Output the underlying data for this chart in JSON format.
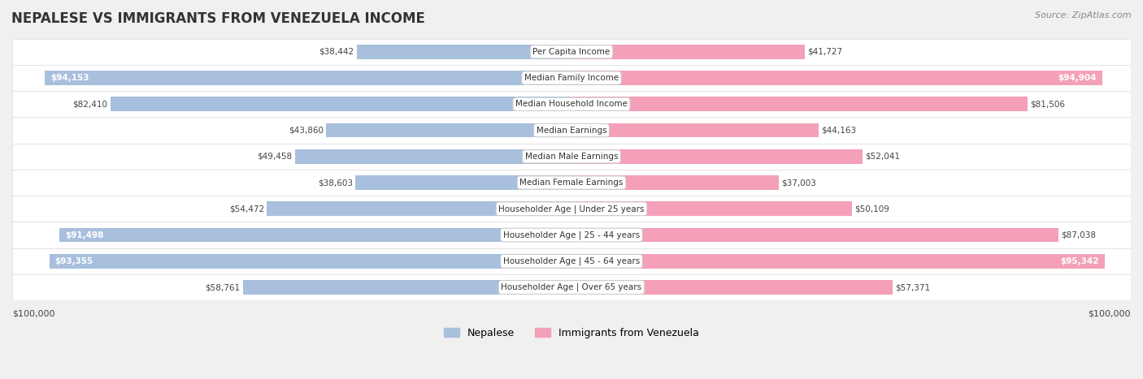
{
  "title": "NEPALESE VS IMMIGRANTS FROM VENEZUELA INCOME",
  "source": "Source: ZipAtlas.com",
  "categories": [
    "Per Capita Income",
    "Median Family Income",
    "Median Household Income",
    "Median Earnings",
    "Median Male Earnings",
    "Median Female Earnings",
    "Householder Age | Under 25 years",
    "Householder Age | 25 - 44 years",
    "Householder Age | 45 - 64 years",
    "Householder Age | Over 65 years"
  ],
  "nepalese_values": [
    38442,
    94153,
    82410,
    43860,
    49458,
    38603,
    54472,
    91498,
    93355,
    58761
  ],
  "venezuela_values": [
    41727,
    94904,
    81506,
    44163,
    52041,
    37003,
    50109,
    87038,
    95342,
    57371
  ],
  "nepalese_labels": [
    "$38,442",
    "$94,153",
    "$82,410",
    "$43,860",
    "$49,458",
    "$38,603",
    "$54,472",
    "$91,498",
    "$93,355",
    "$58,761"
  ],
  "venezuela_labels": [
    "$41,727",
    "$94,904",
    "$81,506",
    "$44,163",
    "$52,041",
    "$37,003",
    "$50,109",
    "$87,038",
    "$95,342",
    "$57,371"
  ],
  "max_value": 100000,
  "nepalese_color": "#a8bfdd",
  "venezuela_color": "#f4a0b8",
  "nepalese_solid_color": "#6b9bc3",
  "venezuela_solid_color": "#e8688a",
  "bg_color": "#f0f0f0",
  "row_bg_color": "#ffffff",
  "legend_nepalese": "Nepalese",
  "legend_venezuela": "Immigrants from Venezuela",
  "xlabel_left": "$100,000",
  "xlabel_right": "$100,000"
}
